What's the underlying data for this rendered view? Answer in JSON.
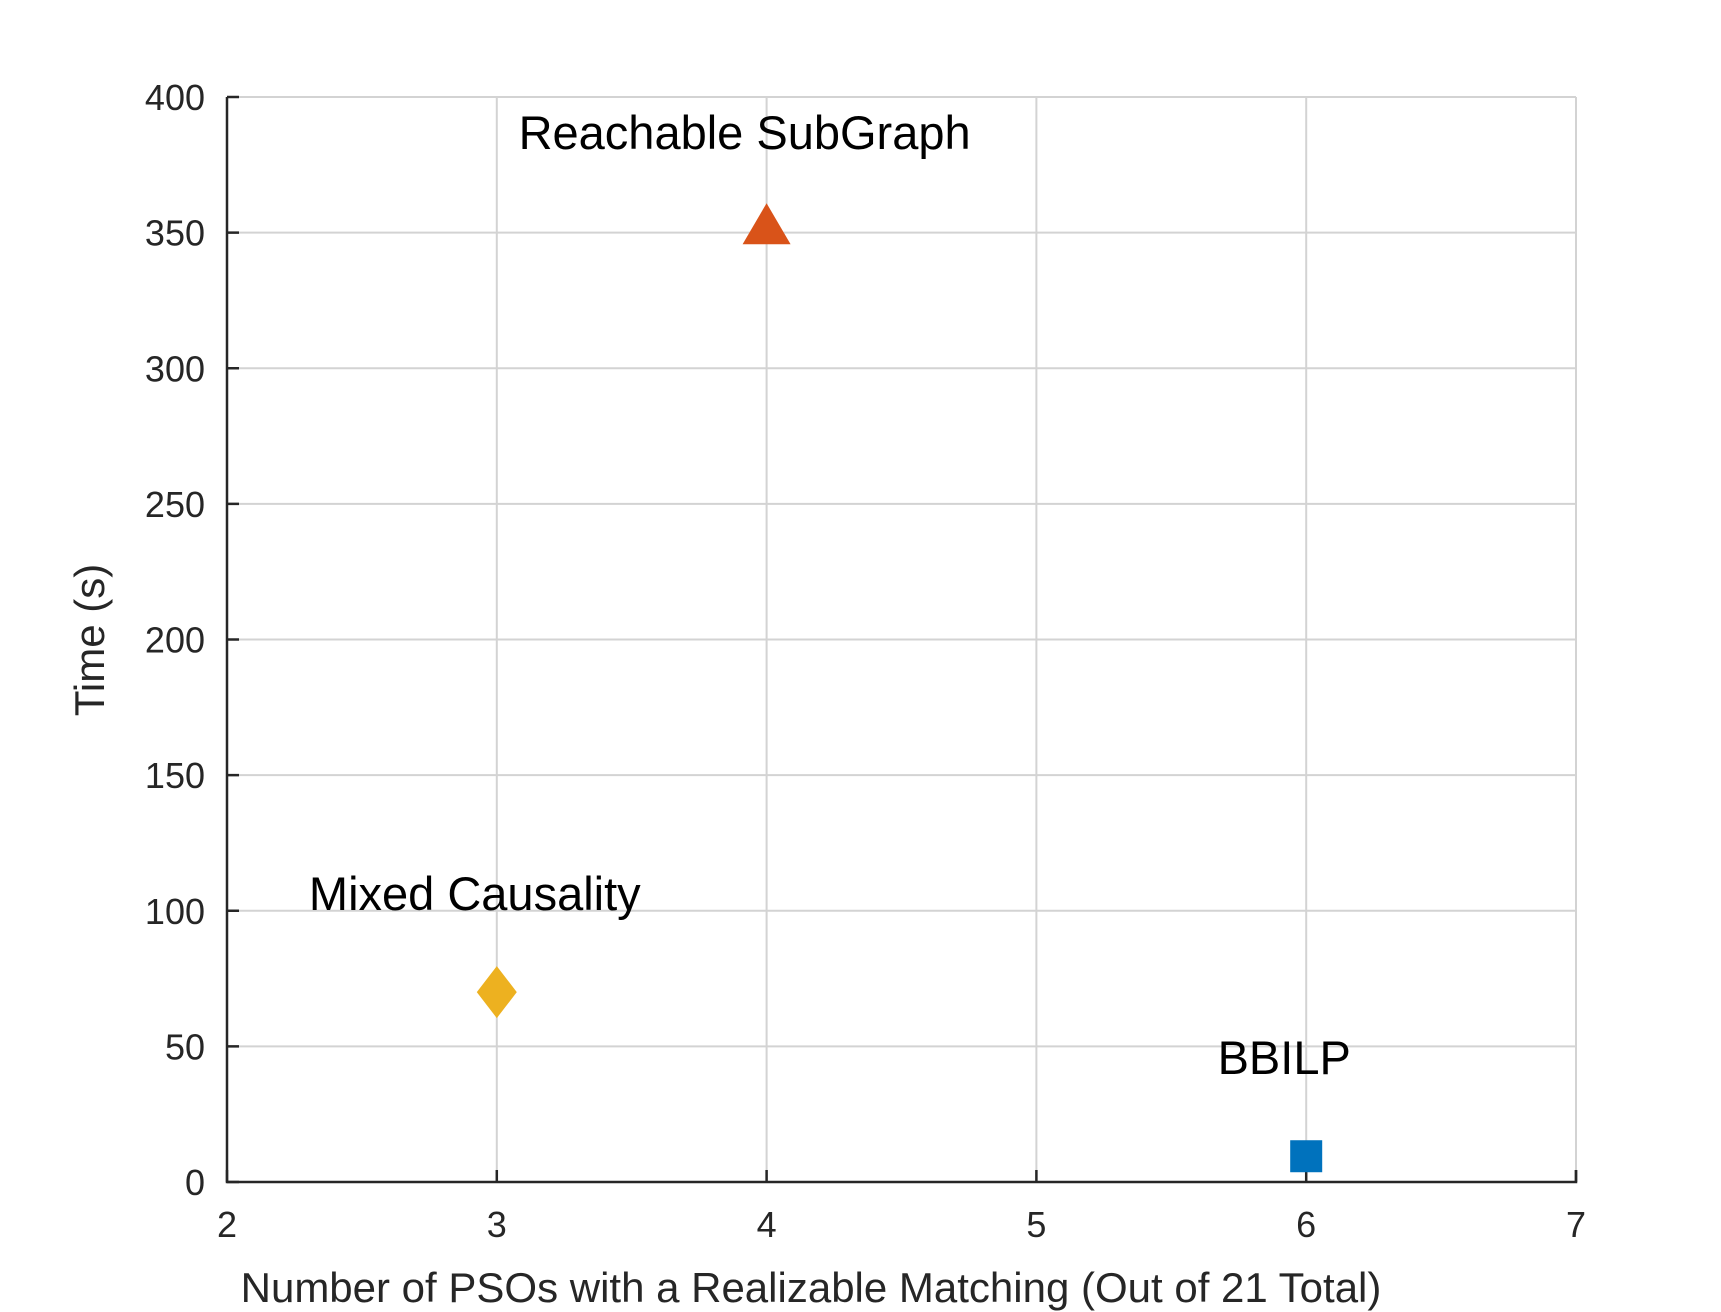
{
  "chart_data": {
    "type": "scatter",
    "title": "",
    "xlabel": "Number of PSOs with a Realizable Matching (Out of 21 Total)",
    "ylabel": "Time (s)",
    "xlim": [
      2,
      7
    ],
    "ylim": [
      0,
      400
    ],
    "x_ticks": [
      2,
      3,
      4,
      5,
      6,
      7
    ],
    "y_ticks": [
      0,
      50,
      100,
      150,
      200,
      250,
      300,
      350,
      400
    ],
    "x_tick_labels": [
      "2",
      "3",
      "4",
      "5",
      "6",
      "7"
    ],
    "y_tick_labels": [
      "0",
      "50",
      "100",
      "150",
      "200",
      "250",
      "300",
      "350",
      "400"
    ],
    "grid": true,
    "points": [
      {
        "label": "BBILP",
        "x": 6,
        "y": 9.5,
        "marker": "square",
        "color": "#0072bd"
      },
      {
        "label": "Reachable SubGraph",
        "x": 4,
        "y": 352,
        "marker": "triangle",
        "color": "#d95319"
      },
      {
        "label": "Mixed Causality",
        "x": 3,
        "y": 70,
        "marker": "diamond",
        "color": "#edb120"
      }
    ]
  }
}
